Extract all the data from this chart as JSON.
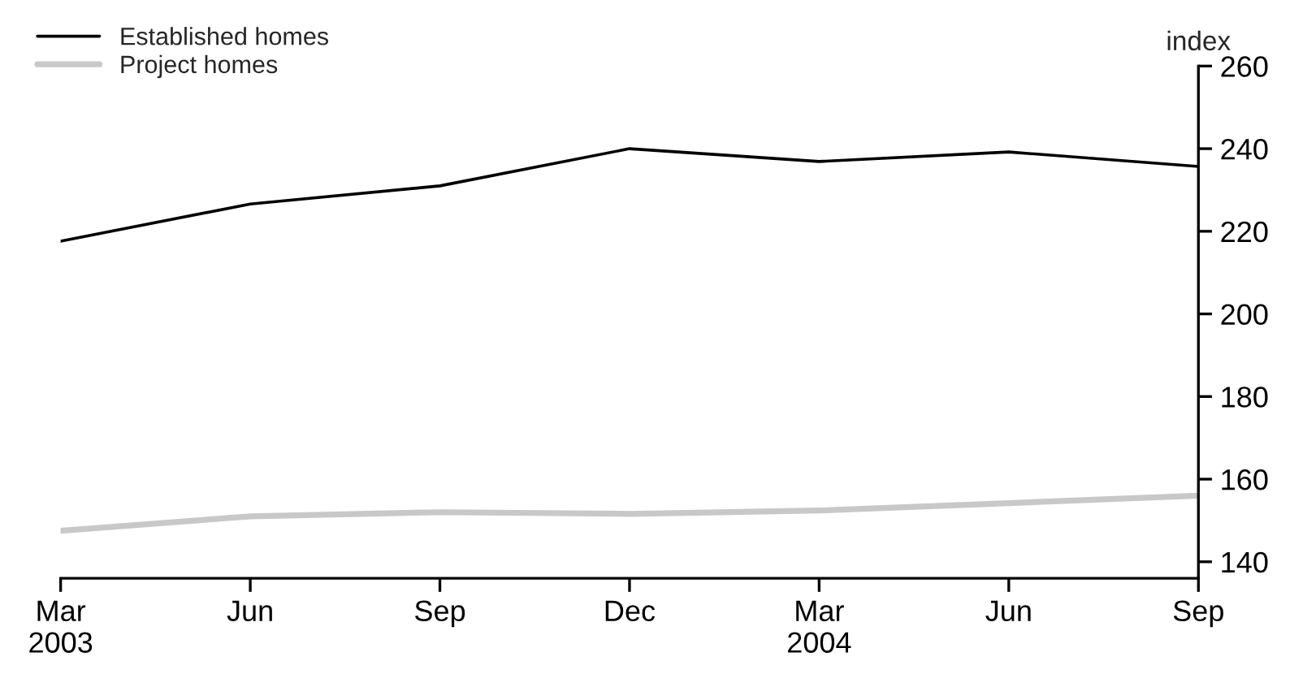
{
  "chart_data": {
    "type": "line",
    "ylabel": "index",
    "categories": [
      "Mar\n2003",
      "Jun",
      "Sep",
      "Dec",
      "Mar\n2004",
      "Jun",
      "Sep"
    ],
    "series": [
      {
        "name": "Established homes",
        "color": "#000000",
        "values": [
          217.6,
          226.6,
          231,
          240,
          236.9,
          239.2,
          235.7
        ]
      },
      {
        "name": "Project homes",
        "color": "#c8c8c8",
        "values": [
          147.5,
          151,
          152,
          151.6,
          152.4,
          154.2,
          156
        ]
      }
    ],
    "ylim": [
      136,
      260
    ],
    "yticks": [
      140,
      160,
      180,
      200,
      220,
      240,
      260
    ],
    "grid": false,
    "legend": "top left",
    "marker": "none",
    "line_style": "solid"
  }
}
